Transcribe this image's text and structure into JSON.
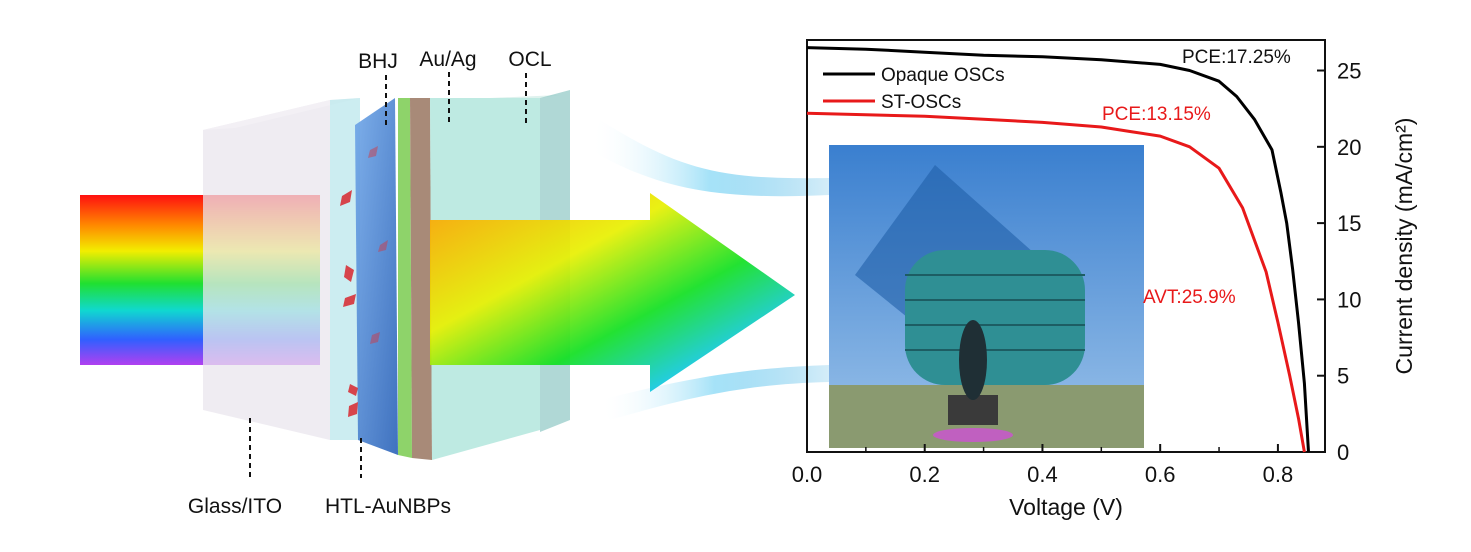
{
  "diagram": {
    "labels": {
      "bhj": "BHJ",
      "electrode": "Au/Ag",
      "ocl": "OCL",
      "glass": "Glass/ITO",
      "htl": "HTL-AuNBPs"
    }
  },
  "chart_data": {
    "type": "line",
    "xlabel": "Voltage (V)",
    "ylabel": "Current density (mA/cm²)",
    "xlim": [
      0,
      0.88
    ],
    "ylim": [
      0,
      27
    ],
    "y_axis_side": "right",
    "xticks": [
      "0.0",
      "0.2",
      "0.4",
      "0.6",
      "0.8"
    ],
    "yticks": [
      "0",
      "5",
      "10",
      "15",
      "20",
      "25"
    ],
    "grid": false,
    "legend_placement": "top-left",
    "series": [
      {
        "name": "Opaque OSCs",
        "color": "#000000",
        "x": [
          0,
          0.1,
          0.2,
          0.3,
          0.4,
          0.5,
          0.6,
          0.65,
          0.7,
          0.73,
          0.76,
          0.79,
          0.805,
          0.815,
          0.825,
          0.835,
          0.845,
          0.852
        ],
        "y": [
          26.5,
          26.4,
          26.2,
          26.0,
          25.9,
          25.7,
          25.4,
          25.0,
          24.3,
          23.3,
          21.8,
          19.8,
          17.0,
          15.0,
          12.0,
          8.5,
          4.5,
          0
        ]
      },
      {
        "name": "ST-OSCs",
        "color": "#e8191a",
        "x": [
          0,
          0.1,
          0.2,
          0.3,
          0.4,
          0.5,
          0.55,
          0.6,
          0.65,
          0.7,
          0.74,
          0.78,
          0.8,
          0.82,
          0.835,
          0.845
        ],
        "y": [
          22.2,
          22.1,
          22.0,
          21.8,
          21.6,
          21.3,
          21.0,
          20.7,
          20.0,
          18.6,
          16.0,
          11.8,
          8.5,
          5.0,
          2.2,
          0
        ]
      }
    ],
    "annotations": [
      {
        "text": "PCE:17.25%",
        "color": "#111111"
      },
      {
        "text": "PCE:13.15%",
        "color": "#e8191a"
      },
      {
        "text": "AVT:25.9%",
        "color": "#e8191a"
      }
    ]
  }
}
